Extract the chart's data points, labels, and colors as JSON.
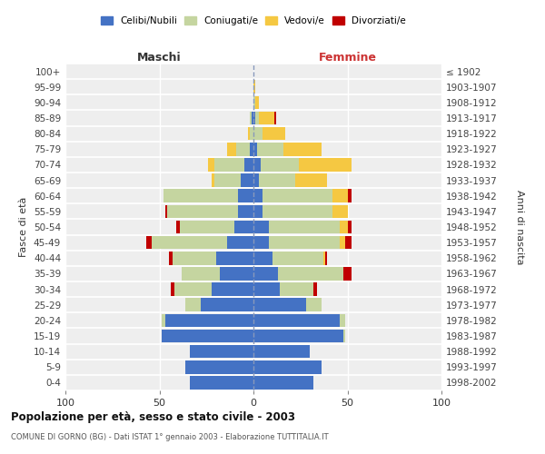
{
  "age_groups": [
    "100+",
    "95-99",
    "90-94",
    "85-89",
    "80-84",
    "75-79",
    "70-74",
    "65-69",
    "60-64",
    "55-59",
    "50-54",
    "45-49",
    "40-44",
    "35-39",
    "30-34",
    "25-29",
    "20-24",
    "15-19",
    "10-14",
    "5-9",
    "0-4"
  ],
  "birth_years": [
    "≤ 1902",
    "1903-1907",
    "1908-1912",
    "1913-1917",
    "1918-1922",
    "1923-1927",
    "1928-1932",
    "1933-1937",
    "1938-1942",
    "1943-1947",
    "1948-1952",
    "1953-1957",
    "1958-1962",
    "1963-1967",
    "1968-1972",
    "1973-1977",
    "1978-1982",
    "1983-1987",
    "1988-1992",
    "1993-1997",
    "1998-2002"
  ],
  "maschi": {
    "celibi": [
      0,
      0,
      0,
      1,
      0,
      2,
      5,
      7,
      8,
      8,
      10,
      14,
      20,
      18,
      22,
      28,
      47,
      49,
      34,
      36,
      34
    ],
    "coniugati": [
      0,
      0,
      0,
      1,
      2,
      7,
      16,
      14,
      40,
      38,
      29,
      40,
      23,
      20,
      20,
      8,
      2,
      0,
      0,
      0,
      0
    ],
    "vedovi": [
      0,
      0,
      0,
      0,
      1,
      5,
      3,
      1,
      0,
      0,
      0,
      0,
      0,
      0,
      0,
      0,
      0,
      0,
      0,
      0,
      0
    ],
    "divorziati": [
      0,
      0,
      0,
      0,
      0,
      0,
      0,
      0,
      0,
      1,
      2,
      3,
      2,
      0,
      2,
      0,
      0,
      0,
      0,
      0,
      0
    ]
  },
  "femmine": {
    "nubili": [
      0,
      0,
      0,
      1,
      0,
      2,
      4,
      3,
      5,
      5,
      8,
      8,
      10,
      13,
      14,
      28,
      46,
      48,
      30,
      36,
      32
    ],
    "coniugate": [
      0,
      0,
      1,
      2,
      5,
      14,
      20,
      19,
      37,
      37,
      38,
      38,
      27,
      35,
      18,
      8,
      3,
      1,
      0,
      0,
      0
    ],
    "vedove": [
      0,
      1,
      2,
      8,
      12,
      20,
      28,
      17,
      8,
      8,
      4,
      3,
      1,
      0,
      0,
      0,
      0,
      0,
      0,
      0,
      0
    ],
    "divorziate": [
      0,
      0,
      0,
      1,
      0,
      0,
      0,
      0,
      2,
      0,
      2,
      3,
      1,
      4,
      2,
      0,
      0,
      0,
      0,
      0,
      0
    ]
  },
  "colors": {
    "celibi_nubili": "#4472C4",
    "coniugati": "#C5D5A0",
    "vedovi": "#F5C842",
    "divorziati": "#C00000"
  },
  "xlim": [
    -100,
    100
  ],
  "xticks": [
    -100,
    -50,
    0,
    50,
    100
  ],
  "xticklabels": [
    "100",
    "50",
    "0",
    "50",
    "100"
  ],
  "title": "Popolazione per età, sesso e stato civile - 2003",
  "subtitle": "COMUNE DI GORNO (BG) - Dati ISTAT 1° gennaio 2003 - Elaborazione TUTTITALIA.IT",
  "ylabel_left": "Fasce di età",
  "ylabel_right": "Anni di nascita",
  "label_maschi": "Maschi",
  "label_femmine": "Femmine",
  "legend_labels": [
    "Celibi/Nubili",
    "Coniugati/e",
    "Vedovi/e",
    "Divorziati/e"
  ],
  "bar_height": 0.85,
  "background_color": "#eeeeee",
  "grid_color": "#ffffff"
}
